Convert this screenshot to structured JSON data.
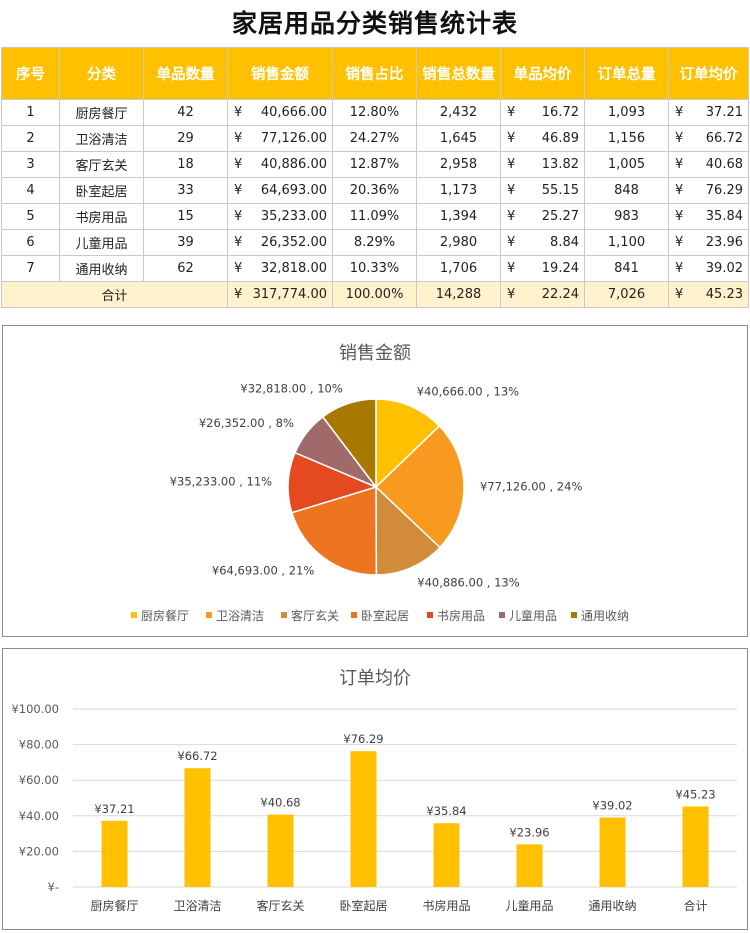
{
  "title": "家居用品分类销售统计表",
  "currency_symbol": "¥",
  "table": {
    "headers": [
      "序号",
      "分类",
      "单品数量",
      "销售金额",
      "销售占比",
      "销售总数量",
      "单品均价",
      "订单总量",
      "订单均价"
    ],
    "rows": [
      {
        "no": "1",
        "category": "厨房餐厅",
        "items": "42",
        "amount": "40,666.00",
        "share": "12.80%",
        "qty": "2,432",
        "unit_price": "16.72",
        "orders": "1,093",
        "order_avg": "37.21"
      },
      {
        "no": "2",
        "category": "卫浴清洁",
        "items": "29",
        "amount": "77,126.00",
        "share": "24.27%",
        "qty": "1,645",
        "unit_price": "46.89",
        "orders": "1,156",
        "order_avg": "66.72"
      },
      {
        "no": "3",
        "category": "客厅玄关",
        "items": "18",
        "amount": "40,886.00",
        "share": "12.87%",
        "qty": "2,958",
        "unit_price": "13.82",
        "orders": "1,005",
        "order_avg": "40.68"
      },
      {
        "no": "4",
        "category": "卧室起居",
        "items": "33",
        "amount": "64,693.00",
        "share": "20.36%",
        "qty": "1,173",
        "unit_price": "55.15",
        "orders": "848",
        "order_avg": "76.29"
      },
      {
        "no": "5",
        "category": "书房用品",
        "items": "15",
        "amount": "35,233.00",
        "share": "11.09%",
        "qty": "1,394",
        "unit_price": "25.27",
        "orders": "983",
        "order_avg": "35.84"
      },
      {
        "no": "6",
        "category": "儿童用品",
        "items": "39",
        "amount": "26,352.00",
        "share": "8.29%",
        "qty": "2,980",
        "unit_price": "8.84",
        "orders": "1,100",
        "order_avg": "23.96"
      },
      {
        "no": "7",
        "category": "通用收纳",
        "items": "62",
        "amount": "32,818.00",
        "share": "10.33%",
        "qty": "1,706",
        "unit_price": "19.24",
        "orders": "841",
        "order_avg": "39.02"
      }
    ],
    "total": {
      "label": "合计",
      "amount": "317,774.00",
      "share": "100.00%",
      "qty": "14,288",
      "unit_price": "22.24",
      "orders": "7,026",
      "order_avg": "45.23"
    }
  },
  "colors": {
    "header_bg": "#FFC000",
    "total_bg": "#FFF2CC",
    "bar": "#FFC000",
    "pie": [
      "#FFC000",
      "#F79A1F",
      "#D28A3B",
      "#ED7520",
      "#E4491F",
      "#A16A6A",
      "#A87900"
    ]
  },
  "chart_data": [
    {
      "type": "pie",
      "title": "销售金额",
      "categories": [
        "厨房餐厅",
        "卫浴清洁",
        "客厅玄关",
        "卧室起居",
        "书房用品",
        "儿童用品",
        "通用收纳"
      ],
      "values": [
        40666,
        77126,
        40886,
        64693,
        35233,
        26352,
        32818
      ],
      "data_labels": [
        "¥40,666.00 , 13%",
        "¥77,126.00 , 24%",
        "¥40,886.00 , 13%",
        "¥64,693.00 , 21%",
        "¥35,233.00 , 11%",
        "¥26,352.00 , 8%",
        "¥32,818.00 , 10%"
      ],
      "legend": "bottom"
    },
    {
      "type": "bar",
      "title": "订单均价",
      "categories": [
        "厨房餐厅",
        "卫浴清洁",
        "客厅玄关",
        "卧室起居",
        "书房用品",
        "儿童用品",
        "通用收纳",
        "合计"
      ],
      "values": [
        37.21,
        66.72,
        40.68,
        76.29,
        35.84,
        23.96,
        39.02,
        45.23
      ],
      "data_labels": [
        "¥37.21",
        "¥66.72",
        "¥40.68",
        "¥76.29",
        "¥35.84",
        "¥23.96",
        "¥39.02",
        "¥45.23"
      ],
      "y_tick_labels": [
        "¥-",
        "¥20.00",
        "¥40.00",
        "¥60.00",
        "¥80.00",
        "¥100.00"
      ],
      "ylim": [
        0,
        100
      ],
      "grid": true
    }
  ]
}
